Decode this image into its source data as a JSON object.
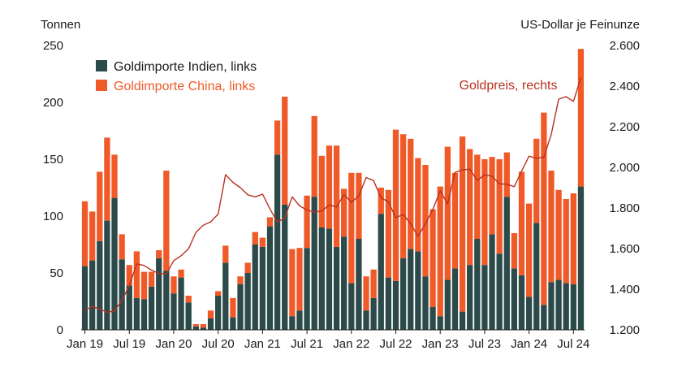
{
  "chart_data": {
    "type": "bar",
    "stacked": true,
    "left_axis": {
      "title": "Tonnen",
      "ticks": [
        0,
        50,
        100,
        150,
        200,
        250
      ],
      "ylim": [
        0,
        250
      ]
    },
    "right_axis": {
      "title": "US-Dollar je Feinunze",
      "ticks": [
        "1.200",
        "1.400",
        "1.600",
        "1.800",
        "2.000",
        "2.200",
        "2.400",
        "2.600"
      ],
      "tick_values": [
        1200,
        1400,
        1600,
        1800,
        2000,
        2200,
        2400,
        2600
      ],
      "ylim": [
        1200,
        2600
      ]
    },
    "x_tick_labels": [
      {
        "index": 0,
        "label": "Jan 19"
      },
      {
        "index": 6,
        "label": "Jul 19"
      },
      {
        "index": 12,
        "label": "Jan 20"
      },
      {
        "index": 18,
        "label": "Jul 20"
      },
      {
        "index": 24,
        "label": "Jan 21"
      },
      {
        "index": 30,
        "label": "Jul 21"
      },
      {
        "index": 36,
        "label": "Jan 22"
      },
      {
        "index": 42,
        "label": "Jul 22"
      },
      {
        "index": 48,
        "label": "Jan 23"
      },
      {
        "index": 54,
        "label": "Jul 23"
      },
      {
        "index": 60,
        "label": "Jan 24"
      },
      {
        "index": 66,
        "label": "Jul 24"
      }
    ],
    "grid": false,
    "legend_position": "top-left",
    "series": [
      {
        "name": "Goldimporte Indien, links",
        "color": "#2c4a4a",
        "axis": "left",
        "values": [
          56,
          61,
          78,
          96,
          116,
          62,
          39,
          28,
          27,
          38,
          63,
          52,
          32,
          46,
          24,
          3,
          2,
          10,
          30,
          59,
          11,
          40,
          50,
          75,
          73,
          91,
          154,
          110,
          12,
          17,
          72,
          117,
          90,
          89,
          73,
          82,
          41,
          80,
          17,
          28,
          102,
          46,
          43,
          63,
          71,
          69,
          47,
          20,
          12,
          44,
          54,
          16,
          57,
          80,
          57,
          84,
          67,
          117,
          54,
          48,
          29,
          94,
          22,
          42,
          44,
          41,
          40,
          126
        ]
      },
      {
        "name": "Goldimporte China, links",
        "color": "#f05a28",
        "axis": "left",
        "values": [
          57,
          43,
          61,
          73,
          38,
          22,
          18,
          41,
          24,
          13,
          7,
          88,
          15,
          7,
          6,
          2,
          3,
          7,
          4,
          15,
          17,
          7,
          9,
          11,
          8,
          8,
          30,
          95,
          59,
          55,
          46,
          71,
          63,
          73,
          89,
          42,
          97,
          58,
          30,
          25,
          23,
          77,
          133,
          109,
          97,
          82,
          98,
          86,
          114,
          117,
          84,
          154,
          102,
          74,
          93,
          68,
          83,
          39,
          31,
          91,
          82,
          74,
          169,
          98,
          79,
          74,
          80,
          121
        ]
      },
      {
        "name": "Goldpreis, rechts",
        "type": "line",
        "color": "#b8311f",
        "axis": "right",
        "label": "Goldpreis, rechts",
        "values": [
          1297,
          1315,
          1303,
          1286,
          1293,
          1345,
          1418,
          1525,
          1517,
          1494,
          1477,
          1476,
          1541,
          1565,
          1599,
          1680,
          1715,
          1732,
          1770,
          1964,
          1926,
          1900,
          1865,
          1855,
          1868,
          1795,
          1731,
          1750,
          1855,
          1810,
          1790,
          1780,
          1785,
          1815,
          1805,
          1866,
          1828,
          1859,
          1950,
          1935,
          1850,
          1830,
          1752,
          1768,
          1723,
          1661,
          1723,
          1793,
          1885,
          1820,
          1975,
          1988,
          1991,
          1936,
          1963,
          1957,
          1919,
          1917,
          1905,
          1982,
          2055,
          2045,
          2050,
          2163,
          2336,
          2348,
          2325,
          2441
        ]
      }
    ]
  }
}
